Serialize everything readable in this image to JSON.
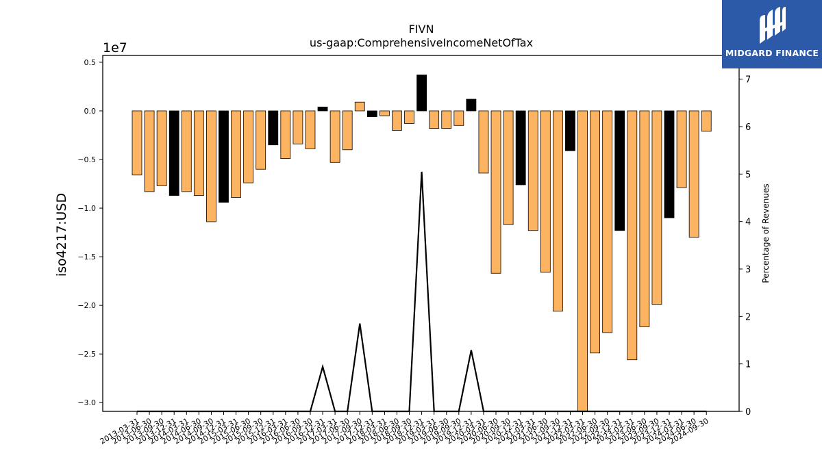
{
  "chart_data": {
    "type": "bar",
    "title": "FIVN",
    "subtitle": "us-gaap:ComprehensiveIncomeNetOfTax",
    "ylabel": "iso4217:USD",
    "y_offset_label": "1e7",
    "y2label": "Percentage of Revenues",
    "ylim": [
      -3.09,
      0.57
    ],
    "y2lim": [
      0,
      7.5
    ],
    "yticks": [
      "0.5",
      "0.0",
      "−0.5",
      "−1.0",
      "−1.5",
      "−2.0",
      "−2.5",
      "−3.0"
    ],
    "ytick_values": [
      0.5,
      0.0,
      -0.5,
      -1.0,
      -1.5,
      -2.0,
      -2.5,
      -3.0
    ],
    "y2ticks": [
      "0",
      "1",
      "2",
      "3",
      "4",
      "5",
      "6",
      "7"
    ],
    "y2tick_values": [
      0,
      1,
      2,
      3,
      4,
      5,
      6,
      7
    ],
    "grid": false,
    "categories": [
      "2013-03-31",
      "2013-06-30",
      "2013-09-30",
      "2013-12-31",
      "2014-03-31",
      "2014-06-30",
      "2014-09-30",
      "2014-12-31",
      "2015-03-31",
      "2015-06-30",
      "2015-09-30",
      "2015-12-31",
      "2016-03-31",
      "2016-06-30",
      "2016-09-30",
      "2016-12-31",
      "2017-03-31",
      "2017-06-30",
      "2017-09-30",
      "2017-12-31",
      "2018-03-31",
      "2018-06-30",
      "2018-09-30",
      "2018-12-31",
      "2019-03-31",
      "2019-06-30",
      "2019-09-30",
      "2019-12-31",
      "2020-03-31",
      "2020-06-30",
      "2020-09-30",
      "2020-12-31",
      "2021-03-31",
      "2021-06-30",
      "2021-09-30",
      "2021-12-31",
      "2022-03-31",
      "2022-06-30",
      "2022-09-30",
      "2022-12-31",
      "2023-03-31",
      "2023-06-30",
      "2023-09-30",
      "2023-12-31",
      "2024-03-31",
      "2024-06-30",
      "2024-09-30"
    ],
    "series": [
      {
        "values": [
          -0.66,
          -0.83,
          -0.77,
          -0.87,
          -0.83,
          -0.87,
          -1.14,
          -0.94,
          -0.89,
          -0.74,
          -0.6,
          -0.35,
          -0.49,
          -0.34,
          -0.39,
          0.04,
          -0.53,
          -0.4,
          0.09,
          -0.06,
          -0.05,
          -0.2,
          -0.13,
          0.37,
          -0.18,
          -0.18,
          -0.15,
          0.12,
          -0.64,
          -1.67,
          -1.17,
          -0.76,
          -1.23,
          -1.66,
          -2.06,
          -0.41,
          -3.09,
          -2.49,
          -2.28,
          -1.23,
          -2.56,
          -2.22,
          -1.99,
          -1.1,
          -0.79,
          -1.3,
          -0.21
        ],
        "bar_colors": [
          "#fdb462",
          "#fdb462",
          "#fdb462",
          "#000000",
          "#fdb462",
          "#fdb462",
          "#fdb462",
          "#000000",
          "#fdb462",
          "#fdb462",
          "#fdb462",
          "#000000",
          "#fdb462",
          "#fdb462",
          "#fdb462",
          "#000000",
          "#fdb462",
          "#fdb462",
          "#fdb462",
          "#000000",
          "#fdb462",
          "#fdb462",
          "#fdb462",
          "#000000",
          "#fdb462",
          "#fdb462",
          "#fdb462",
          "#000000",
          "#fdb462",
          "#fdb462",
          "#fdb462",
          "#000000",
          "#fdb462",
          "#fdb462",
          "#fdb462",
          "#000000",
          "#fdb462",
          "#fdb462",
          "#fdb462",
          "#000000",
          "#fdb462",
          "#fdb462",
          "#fdb462",
          "#000000",
          "#fdb462",
          "#fdb462",
          "#fdb462"
        ]
      },
      {
        "type": "line",
        "axis": "right",
        "color": "#000000",
        "values": [
          0,
          0,
          0,
          0,
          0,
          0,
          0,
          0,
          0,
          0,
          0,
          0,
          0,
          0,
          0,
          0.94,
          0,
          0,
          1.85,
          0,
          0,
          0,
          0,
          5.05,
          0,
          0,
          0,
          1.29,
          0,
          0,
          0,
          0,
          0,
          0,
          0,
          0,
          0,
          0,
          0,
          0,
          0,
          0,
          0,
          0,
          0,
          0,
          0
        ]
      }
    ]
  },
  "logo": {
    "text": "MIDGARD FINANCE"
  }
}
